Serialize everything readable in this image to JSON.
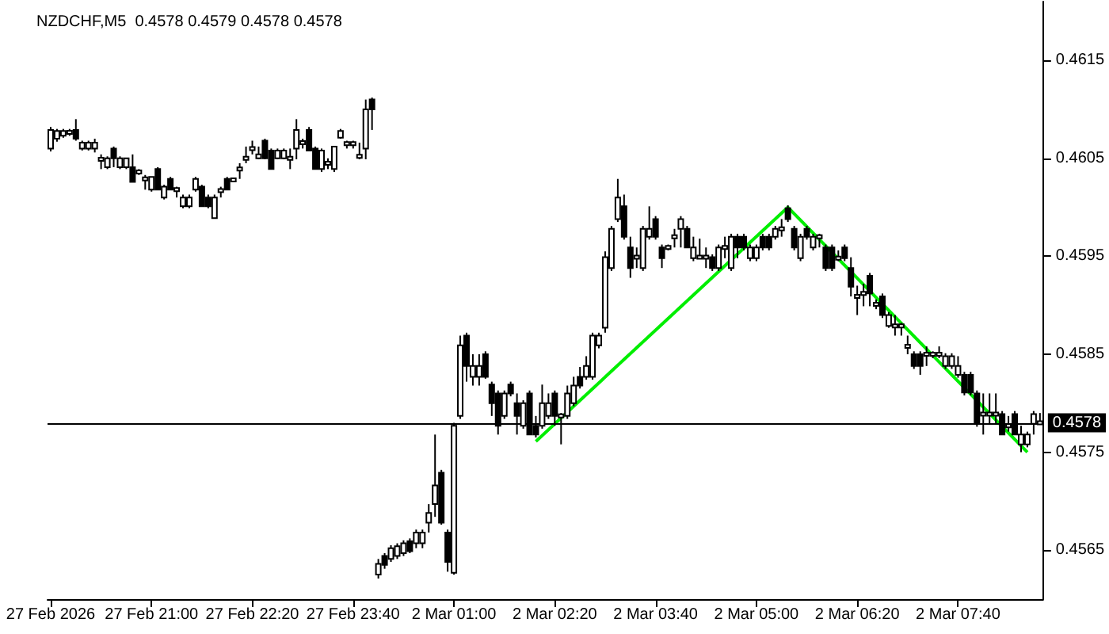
{
  "chart_data": {
    "type": "candlestick",
    "title": "NZDCHF,M5  0.4578 0.4579 0.4578 0.4578",
    "categories": [
      "27 Feb 2026",
      null,
      null,
      null,
      null,
      null,
      null,
      null,
      null,
      null,
      null,
      null,
      null,
      null,
      null,
      null,
      "27 Feb 21:00",
      null,
      null,
      null,
      null,
      null,
      null,
      null,
      null,
      null,
      null,
      null,
      null,
      null,
      null,
      null,
      "27 Feb 22:20",
      null,
      null,
      null,
      null,
      null,
      null,
      null,
      null,
      null,
      null,
      null,
      null,
      null,
      null,
      null,
      "27 Feb 23:40",
      null,
      null,
      null,
      null,
      null,
      null,
      null,
      null,
      null,
      null,
      null,
      null,
      null,
      null,
      null,
      "2 Mar 01:00",
      null,
      null,
      null,
      null,
      null,
      null,
      null,
      null,
      null,
      null,
      null,
      null,
      null,
      null,
      null,
      "2 Mar 02:20",
      null,
      null,
      null,
      null,
      null,
      null,
      null,
      null,
      null,
      null,
      null,
      null,
      null,
      null,
      null,
      "2 Mar 03:40",
      null,
      null,
      null,
      null,
      null,
      null,
      null,
      null,
      null,
      null,
      null,
      null,
      null,
      null,
      null,
      "2 Mar 05:00",
      null,
      null,
      null,
      null,
      null,
      null,
      null,
      null,
      null,
      null,
      null,
      null,
      null,
      null,
      null,
      "2 Mar 06:20",
      null,
      null,
      null,
      null,
      null,
      null,
      null,
      null,
      null,
      null,
      null,
      null,
      null,
      null,
      null,
      "2 Mar 07:40",
      null,
      null,
      null,
      null,
      null,
      null,
      null,
      null,
      null,
      null,
      null,
      null,
      null
    ],
    "ohlc": [
      [
        0.4606,
        0.46082,
        0.46057,
        0.46079
      ],
      [
        0.4607,
        0.4608,
        0.46067,
        0.46078
      ],
      [
        0.46073,
        0.4608,
        0.46071,
        0.46078
      ],
      [
        0.46075,
        0.4608,
        0.46073,
        0.46078
      ],
      [
        0.46079,
        0.4609,
        0.46068,
        0.4607
      ],
      [
        0.4606,
        0.46068,
        0.46058,
        0.46066
      ],
      [
        0.4606,
        0.46068,
        0.46058,
        0.46066
      ],
      [
        0.4606,
        0.4607,
        0.46056,
        0.46066
      ],
      [
        0.46049,
        0.46054,
        0.46039,
        0.46049
      ],
      [
        0.46041,
        0.46052,
        0.46039,
        0.4605
      ],
      [
        0.4606,
        0.46062,
        0.46041,
        0.4605
      ],
      [
        0.46041,
        0.46052,
        0.46039,
        0.4605
      ],
      [
        0.46041,
        0.4605,
        0.46039,
        0.4605
      ],
      [
        0.46041,
        0.46054,
        0.46026,
        0.46026
      ],
      [
        0.46036,
        0.46039,
        0.46033,
        0.46036
      ],
      [
        0.46029,
        0.46033,
        0.46018,
        0.46029
      ],
      [
        0.46018,
        0.46031,
        0.46016,
        0.46031
      ],
      [
        0.46039,
        0.46041,
        0.46018,
        0.46018
      ],
      [
        0.4601,
        0.46023,
        0.46008,
        0.46021
      ],
      [
        0.46029,
        0.46031,
        0.46018,
        0.46018
      ],
      [
        0.46018,
        0.46021,
        0.4601,
        0.46018
      ],
      [
        0.46001,
        0.46013,
        0.45999,
        0.4601
      ],
      [
        0.46001,
        0.46013,
        0.45999,
        0.4601
      ],
      [
        0.46018,
        0.46031,
        0.46016,
        0.46029
      ],
      [
        0.46021,
        0.46023,
        0.46001,
        0.46001
      ],
      [
        0.4601,
        0.46013,
        0.45999,
        0.46001
      ],
      [
        0.45989,
        0.46013,
        0.45989,
        0.4601
      ],
      [
        0.46017,
        0.46021,
        0.4601,
        0.46017
      ],
      [
        0.46029,
        0.46031,
        0.46018,
        0.46018
      ],
      [
        0.46028,
        0.46029,
        0.46026,
        0.46028
      ],
      [
        0.46039,
        0.46045,
        0.46029,
        0.46039
      ],
      [
        0.4605,
        0.46062,
        0.46045,
        0.4605
      ],
      [
        0.4606,
        0.46068,
        0.46054,
        0.4606
      ],
      [
        0.4605,
        0.46062,
        0.46049,
        0.46054
      ],
      [
        0.46068,
        0.4607,
        0.46049,
        0.4605
      ],
      [
        0.46058,
        0.4606,
        0.46039,
        0.46039
      ],
      [
        0.4605,
        0.4606,
        0.46049,
        0.46058
      ],
      [
        0.4605,
        0.4606,
        0.46049,
        0.46058
      ],
      [
        0.4605,
        0.4606,
        0.46039,
        0.4605
      ],
      [
        0.4606,
        0.4609,
        0.46049,
        0.46079
      ],
      [
        0.46066,
        0.4607,
        0.4606,
        0.46066
      ],
      [
        0.46079,
        0.46082,
        0.46058,
        0.46058
      ],
      [
        0.4606,
        0.46062,
        0.46039,
        0.46039
      ],
      [
        0.46039,
        0.4606,
        0.46036,
        0.46058
      ],
      [
        0.46045,
        0.4605,
        0.46039,
        0.46045
      ],
      [
        0.46039,
        0.46062,
        0.46036,
        0.46062
      ],
      [
        0.46071,
        0.4608,
        0.4607,
        0.46078
      ],
      [
        0.46065,
        0.46068,
        0.4606,
        0.46065
      ],
      [
        0.46065,
        0.46068,
        0.4606,
        0.46065
      ],
      [
        0.46052,
        0.46066,
        0.46049,
        0.46052
      ],
      [
        0.4606,
        0.4611,
        0.46049,
        0.461
      ],
      [
        0.4611,
        0.46112,
        0.46079,
        0.461
      ],
      [
        0.45625,
        0.45641,
        0.45621,
        0.45636
      ],
      [
        0.45644,
        0.45647,
        0.45631,
        0.45635
      ],
      [
        0.45641,
        0.45655,
        0.45638,
        0.45652
      ],
      [
        0.45644,
        0.45657,
        0.45641,
        0.45654
      ],
      [
        0.45647,
        0.4566,
        0.45644,
        0.45657
      ],
      [
        0.45659,
        0.45662,
        0.45647,
        0.45649
      ],
      [
        0.45657,
        0.45671,
        0.45652,
        0.45668
      ],
      [
        0.45657,
        0.45671,
        0.45652,
        0.45668
      ],
      [
        0.45678,
        0.45697,
        0.45668,
        0.45688
      ],
      [
        0.45697,
        0.45768,
        0.45684,
        0.45716
      ],
      [
        0.45729,
        0.45732,
        0.45676,
        0.45678
      ],
      [
        0.45668,
        0.45671,
        0.45628,
        0.45638
      ],
      [
        0.45627,
        0.4578,
        0.45625,
        0.45777
      ],
      [
        0.45787,
        0.45869,
        0.45784,
        0.45859
      ],
      [
        0.45869,
        0.45872,
        0.45822,
        0.45838
      ],
      [
        0.45827,
        0.4585,
        0.45818,
        0.45838
      ],
      [
        0.45827,
        0.4585,
        0.45818,
        0.45838
      ],
      [
        0.4585,
        0.45853,
        0.45825,
        0.45827
      ],
      [
        0.45819,
        0.45822,
        0.45787,
        0.458
      ],
      [
        0.4581,
        0.45813,
        0.45768,
        0.45777
      ],
      [
        0.45787,
        0.45813,
        0.45784,
        0.4581
      ],
      [
        0.45819,
        0.45822,
        0.45807,
        0.4581
      ],
      [
        0.458,
        0.4581,
        0.45768,
        0.45787
      ],
      [
        0.45777,
        0.45803,
        0.45774,
        0.458
      ],
      [
        0.4581,
        0.45813,
        0.45768,
        0.45768
      ],
      [
        0.45777,
        0.45787,
        0.45765,
        0.45768
      ],
      [
        0.45777,
        0.45819,
        0.45774,
        0.458
      ],
      [
        0.45787,
        0.4581,
        0.45784,
        0.458
      ],
      [
        0.4581,
        0.45813,
        0.45777,
        0.45787
      ],
      [
        0.45787,
        0.4579,
        0.45758,
        0.45787
      ],
      [
        0.45787,
        0.45818,
        0.45784,
        0.4581
      ],
      [
        0.458,
        0.45827,
        0.45797,
        0.45818
      ],
      [
        0.45827,
        0.45837,
        0.45815,
        0.45818
      ],
      [
        0.45827,
        0.45848,
        0.45824,
        0.45838
      ],
      [
        0.45827,
        0.45872,
        0.45824,
        0.45869
      ],
      [
        0.45859,
        0.45872,
        0.45856,
        0.45869
      ],
      [
        0.45877,
        0.45955,
        0.45872,
        0.45949
      ],
      [
        0.45938,
        0.45981,
        0.45935,
        0.45978
      ],
      [
        0.45988,
        0.46029,
        0.45985,
        0.4601
      ],
      [
        0.46001,
        0.46013,
        0.45967,
        0.4597
      ],
      [
        0.45959,
        0.4597,
        0.45928,
        0.45938
      ],
      [
        0.45949,
        0.45959,
        0.45938,
        0.45949
      ],
      [
        0.45938,
        0.45981,
        0.45935,
        0.45978
      ],
      [
        0.4597,
        0.46001,
        0.45967,
        0.45978
      ],
      [
        0.45988,
        0.45991,
        0.45967,
        0.4597
      ],
      [
        0.45959,
        0.45962,
        0.45938,
        0.45948
      ],
      [
        0.45959,
        0.45962,
        0.45956,
        0.45959
      ],
      [
        0.4597,
        0.45978,
        0.45959,
        0.4597
      ],
      [
        0.45978,
        0.45991,
        0.45959,
        0.45988
      ],
      [
        0.45978,
        0.45981,
        0.45959,
        0.45959
      ],
      [
        0.45948,
        0.4597,
        0.45945,
        0.45959
      ],
      [
        0.45949,
        0.45968,
        0.45948,
        0.45949
      ],
      [
        0.45949,
        0.45959,
        0.45938,
        0.45949
      ],
      [
        0.45949,
        0.45952,
        0.45935,
        0.45938
      ],
      [
        0.45938,
        0.45962,
        0.45935,
        0.45959
      ],
      [
        0.45959,
        0.4597,
        0.45948,
        0.45959
      ],
      [
        0.45938,
        0.45973,
        0.45935,
        0.4597
      ],
      [
        0.4597,
        0.45973,
        0.45948,
        0.45959
      ],
      [
        0.4597,
        0.45973,
        0.45956,
        0.45959
      ],
      [
        0.45948,
        0.45962,
        0.45945,
        0.45959
      ],
      [
        0.45948,
        0.45962,
        0.45945,
        0.45959
      ],
      [
        0.4597,
        0.45973,
        0.45956,
        0.45959
      ],
      [
        0.4597,
        0.45973,
        0.45956,
        0.45959
      ],
      [
        0.4597,
        0.45981,
        0.45967,
        0.45978
      ],
      [
        0.45978,
        0.45988,
        0.4597,
        0.45978
      ],
      [
        0.45999,
        0.46002,
        0.45985,
        0.45988
      ],
      [
        0.45978,
        0.45981,
        0.45956,
        0.45959
      ],
      [
        0.45948,
        0.45973,
        0.45945,
        0.4597
      ],
      [
        0.45978,
        0.45981,
        0.45967,
        0.4597
      ],
      [
        0.45959,
        0.45973,
        0.45956,
        0.4597
      ],
      [
        0.4597,
        0.45973,
        0.45959,
        0.4597
      ],
      [
        0.45959,
        0.45962,
        0.45935,
        0.45938
      ],
      [
        0.45959,
        0.45962,
        0.45935,
        0.45938
      ],
      [
        0.45948,
        0.45956,
        0.45945,
        0.45948
      ],
      [
        0.45959,
        0.45962,
        0.45945,
        0.45948
      ],
      [
        0.45938,
        0.45949,
        0.45909,
        0.45919
      ],
      [
        0.45909,
        0.4592,
        0.4589,
        0.45909
      ],
      [
        0.45912,
        0.45922,
        0.45899,
        0.45912
      ],
      [
        0.4593,
        0.45933,
        0.45899,
        0.45912
      ],
      [
        0.45901,
        0.45906,
        0.45896,
        0.45901
      ],
      [
        0.45909,
        0.45912,
        0.45887,
        0.4589
      ],
      [
        0.45879,
        0.45893,
        0.45877,
        0.4589
      ],
      [
        0.45879,
        0.4589,
        0.45869,
        0.45879
      ],
      [
        0.45879,
        0.45882,
        0.45869,
        0.45879
      ],
      [
        0.45858,
        0.45869,
        0.4585,
        0.45858
      ],
      [
        0.4585,
        0.45853,
        0.45835,
        0.45838
      ],
      [
        0.4585,
        0.45853,
        0.45829,
        0.45838
      ],
      [
        0.4585,
        0.45858,
        0.45838,
        0.4585
      ],
      [
        0.4585,
        0.45853,
        0.45846,
        0.4585
      ],
      [
        0.4585,
        0.45858,
        0.45846,
        0.4585
      ],
      [
        0.45838,
        0.45851,
        0.45835,
        0.45848
      ],
      [
        0.45838,
        0.45851,
        0.45835,
        0.45848
      ],
      [
        0.45829,
        0.45848,
        0.45826,
        0.45838
      ],
      [
        0.45829,
        0.45832,
        0.45808,
        0.45811
      ],
      [
        0.45829,
        0.45832,
        0.45808,
        0.45811
      ],
      [
        0.4581,
        0.45813,
        0.45776,
        0.45779
      ],
      [
        0.45789,
        0.4581,
        0.45768,
        0.45789
      ],
      [
        0.45789,
        0.4581,
        0.45779,
        0.45789
      ],
      [
        0.45789,
        0.4581,
        0.45779,
        0.45789
      ],
      [
        0.45789,
        0.45792,
        0.45768,
        0.45768
      ],
      [
        0.45777,
        0.45787,
        0.45771,
        0.45777
      ],
      [
        0.45789,
        0.45792,
        0.45768,
        0.45768
      ],
      [
        0.45758,
        0.45777,
        0.4575,
        0.45768
      ],
      [
        0.45758,
        0.45771,
        0.45755,
        0.45768
      ],
      [
        0.45779,
        0.45792,
        0.45768,
        0.45789
      ],
      [
        0.4578,
        0.4579,
        0.4578,
        0.4578
      ]
    ],
    "series": [
      {
        "type": "line",
        "color": "#00ee00",
        "values": [
          null,
          null,
          null,
          null,
          null,
          null,
          null,
          null,
          null,
          null,
          null,
          null,
          null,
          null,
          null,
          null,
          null,
          null,
          null,
          null,
          null,
          null,
          null,
          null,
          null,
          null,
          null,
          null,
          null,
          null,
          null,
          null,
          null,
          null,
          null,
          null,
          null,
          null,
          null,
          null,
          null,
          null,
          null,
          null,
          null,
          null,
          null,
          null,
          null,
          null,
          null,
          null,
          null,
          null,
          null,
          null,
          null,
          null,
          null,
          null,
          null,
          null,
          null,
          null,
          null,
          null,
          null,
          null,
          null,
          null,
          null,
          null,
          null,
          null,
          null,
          null,
          null,
          0.45761,
          null,
          null,
          null,
          null,
          null,
          null,
          null,
          null,
          null,
          null,
          null,
          null,
          null,
          null,
          null,
          null,
          null,
          null,
          null,
          null,
          null,
          null,
          null,
          null,
          null,
          null,
          null,
          null,
          null,
          null,
          null,
          null,
          null,
          null,
          null,
          null,
          null,
          null,
          null,
          0.46,
          null,
          null,
          null,
          null,
          null,
          null,
          null,
          null,
          null,
          null,
          null,
          null,
          null,
          null,
          null,
          null,
          null,
          null,
          null,
          null,
          null,
          null,
          null,
          null,
          null,
          null,
          null,
          null,
          null,
          null,
          null,
          null,
          null,
          null,
          null,
          null,
          null,
          0.4575,
          null,
          null
        ]
      }
    ],
    "line_style": "solid",
    "ylim": [
      0.456,
      0.4621
    ],
    "yticks": [
      0.4565,
      0.4575,
      0.4585,
      0.4595,
      0.4605,
      0.4615
    ],
    "ref_lines": [
      {
        "axis": "y",
        "value": 0.4578,
        "label": "0.4578",
        "color": "#000000"
      }
    ],
    "grid": false
  }
}
